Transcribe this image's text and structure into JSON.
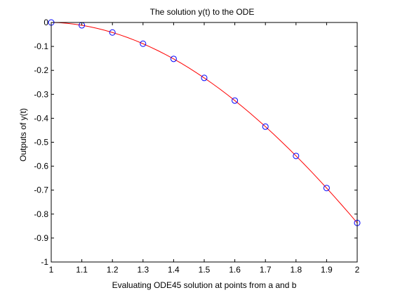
{
  "chart_data": {
    "type": "line",
    "title": "The solution y(t) to the ODE",
    "xlabel": "Evaluating ODE45 solution at points from a and b",
    "ylabel": "Outputs of y(t)",
    "xlim": [
      1,
      2
    ],
    "ylim": [
      -1,
      0
    ],
    "xticks": [
      1,
      1.1,
      1.2,
      1.3,
      1.4,
      1.5,
      1.6,
      1.7,
      1.8,
      1.9,
      2
    ],
    "xtick_labels": [
      "1",
      "1.1",
      "1.2",
      "1.3",
      "1.4",
      "1.5",
      "1.6",
      "1.7",
      "1.8",
      "1.9",
      "2"
    ],
    "yticks": [
      0,
      -0.1,
      -0.2,
      -0.3,
      -0.4,
      -0.5,
      -0.6,
      -0.7,
      -0.8,
      -0.9,
      -1
    ],
    "ytick_labels": [
      "0",
      "-0.1",
      "-0.2",
      "-0.3",
      "-0.4",
      "-0.5",
      "-0.6",
      "-0.7",
      "-0.8",
      "-0.9",
      "-1"
    ],
    "grid": false,
    "series": [
      {
        "style": "line",
        "color": "#ff0000",
        "x": [
          1,
          1.025,
          1.05,
          1.075,
          1.1,
          1.125,
          1.15,
          1.175,
          1.2,
          1.225,
          1.25,
          1.275,
          1.3,
          1.325,
          1.35,
          1.375,
          1.4,
          1.425,
          1.45,
          1.475,
          1.5,
          1.525,
          1.55,
          1.575,
          1.6,
          1.625,
          1.65,
          1.675,
          1.7,
          1.725,
          1.75,
          1.775,
          1.8,
          1.825,
          1.85,
          1.875,
          1.9,
          1.925,
          1.95,
          1.975,
          2
        ],
        "y": [
          0,
          -0.0008,
          -0.0032,
          -0.0069,
          -0.0118,
          -0.0177,
          -0.0247,
          -0.0327,
          -0.0418,
          -0.0519,
          -0.0631,
          -0.0754,
          -0.0887,
          -0.1031,
          -0.1184,
          -0.1347,
          -0.152,
          -0.1704,
          -0.1898,
          -0.2102,
          -0.2314,
          -0.2536,
          -0.2768,
          -0.301,
          -0.3261,
          -0.352,
          -0.3788,
          -0.4064,
          -0.4349,
          -0.4642,
          -0.4944,
          -0.5253,
          -0.557,
          -0.5895,
          -0.6227,
          -0.6567,
          -0.6913,
          -0.7267,
          -0.7628,
          -0.7994,
          -0.8368
        ]
      },
      {
        "style": "markers",
        "marker": "circle",
        "color": "#0000ff",
        "x": [
          1,
          1.1,
          1.2,
          1.3,
          1.4,
          1.5,
          1.6,
          1.7,
          1.8,
          1.9,
          2
        ],
        "y": [
          0,
          -0.0118,
          -0.0418,
          -0.0887,
          -0.152,
          -0.2314,
          -0.3261,
          -0.4349,
          -0.557,
          -0.6913,
          -0.8368
        ]
      }
    ]
  }
}
